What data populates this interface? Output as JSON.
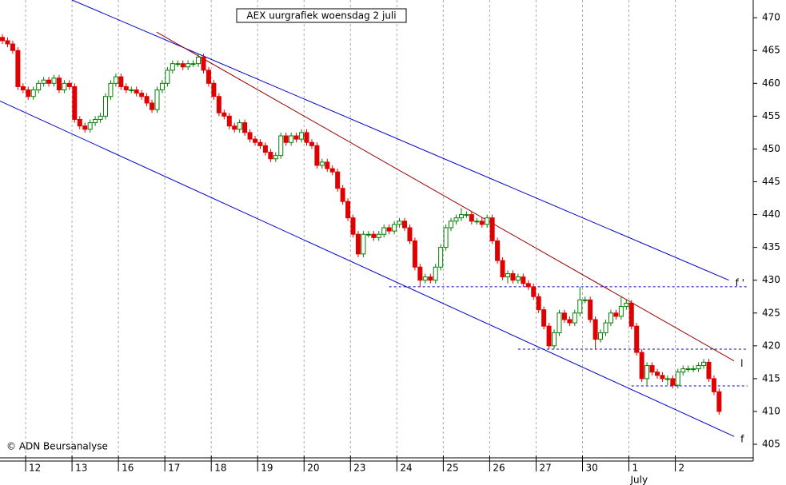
{
  "chart_data": {
    "type": "candlestick",
    "title": "AEX uurgrafiek woensdag 2 juli",
    "credit": "© ADN Beursanalyse",
    "month_label": "July",
    "up_color": "#008000",
    "down_color": "#e00000",
    "xlim": [
      -0.47,
      145.3
    ],
    "ylim": [
      403.3,
      472.7
    ],
    "yticks": [
      405,
      410,
      415,
      420,
      425,
      430,
      435,
      440,
      445,
      450,
      455,
      460,
      465,
      470
    ],
    "xticks": [
      {
        "value": 4.5,
        "label": "12"
      },
      {
        "value": 13.5,
        "label": "13"
      },
      {
        "value": 22.5,
        "label": "16"
      },
      {
        "value": 31.5,
        "label": "17"
      },
      {
        "value": 40.5,
        "label": "18"
      },
      {
        "value": 49.5,
        "label": "19"
      },
      {
        "value": 58.5,
        "label": "20"
      },
      {
        "value": 67.5,
        "label": "23"
      },
      {
        "value": 76.5,
        "label": "24"
      },
      {
        "value": 85.5,
        "label": "25"
      },
      {
        "value": 94.5,
        "label": "26"
      },
      {
        "value": 103.5,
        "label": "27"
      },
      {
        "value": 112.5,
        "label": "30"
      },
      {
        "value": 121.5,
        "label": "1"
      },
      {
        "value": 130.5,
        "label": "2"
      }
    ],
    "grid": true,
    "open": [
      467,
      466.5,
      466,
      465,
      459.5,
      459,
      458,
      459,
      460,
      460.5,
      460,
      460.8,
      459,
      460,
      459.5,
      454.5,
      453.5,
      453,
      454,
      454.5,
      455,
      458,
      460,
      461,
      459.5,
      459,
      459,
      458.5,
      458,
      457,
      456,
      459,
      460,
      462,
      463,
      463,
      462.5,
      463,
      463,
      464,
      462,
      460,
      458,
      455.5,
      455,
      453.5,
      453,
      454,
      452.5,
      451.5,
      451,
      450.5,
      449.5,
      448.5,
      449,
      452,
      451,
      452,
      451.5,
      452.5,
      451,
      450.5,
      447.5,
      448,
      447,
      446.5,
      444,
      442,
      439.5,
      437,
      434,
      437,
      437,
      436.5,
      437,
      438,
      437.5,
      438.5,
      439,
      438,
      436,
      432,
      430,
      430.5,
      430,
      432,
      435,
      438,
      439,
      439.5,
      440,
      440,
      439,
      439,
      438.5,
      439.5,
      436,
      433,
      430.5,
      431,
      430,
      430.5,
      429.5,
      429,
      427.5,
      425.5,
      423,
      420,
      422,
      425,
      424,
      423.5,
      425,
      427,
      427,
      424,
      421,
      422,
      423.5,
      425,
      424.5,
      426,
      426.5,
      423,
      419,
      415,
      417,
      416,
      415.5,
      415,
      415,
      414,
      416,
      416.5,
      416.5,
      416.5,
      417,
      417.5,
      415,
      413
    ],
    "high": [
      467.5,
      467,
      466.5,
      465.5,
      460,
      459.5,
      459.5,
      460.5,
      461,
      461,
      461.3,
      461.3,
      460.5,
      460.5,
      460,
      455,
      454,
      454.5,
      455,
      455.5,
      458.5,
      460.5,
      461.5,
      461.5,
      460,
      459.5,
      459.5,
      459,
      458.5,
      457.5,
      459.5,
      460.5,
      462.5,
      463.5,
      463.5,
      463.5,
      463.5,
      463.5,
      464.5,
      464.5,
      462.5,
      460.5,
      458.5,
      456,
      455.5,
      454,
      454.5,
      454.5,
      453,
      452,
      451.5,
      451,
      450,
      449.5,
      452.5,
      452.5,
      452.5,
      452.5,
      453,
      453,
      451.5,
      451,
      448.5,
      448.5,
      447.5,
      447,
      444.5,
      442.5,
      440,
      437.5,
      437.5,
      437.5,
      437.5,
      437.5,
      438.5,
      438.5,
      439,
      439.5,
      439.5,
      438.5,
      436.5,
      432.5,
      431,
      431,
      432.5,
      435.5,
      438.5,
      439.5,
      440,
      441,
      440.5,
      440.5,
      439.5,
      439.5,
      440,
      440,
      436.5,
      433.5,
      431.5,
      431.5,
      431,
      431,
      430,
      429.5,
      428,
      426,
      423.5,
      422.5,
      425.5,
      425.5,
      424.5,
      425.5,
      429,
      427.5,
      427.5,
      424.5,
      422.5,
      424,
      425.5,
      425.5,
      427.5,
      427,
      427,
      423.5,
      419.5,
      417.5,
      417.5,
      416.5,
      416,
      415.5,
      415.5,
      416.5,
      417,
      417,
      417,
      417.5,
      418,
      418,
      415.5,
      413.5
    ],
    "low": [
      466,
      465.5,
      464.5,
      459,
      458.5,
      457.5,
      457.5,
      458.5,
      459.5,
      459.5,
      459.5,
      458.5,
      458.5,
      459,
      454,
      453,
      452.5,
      452.5,
      453.5,
      454,
      454.5,
      457.5,
      459.5,
      459,
      458.5,
      458.5,
      458,
      457.5,
      456.5,
      455.5,
      455.5,
      458.5,
      459.5,
      461.5,
      462.5,
      462,
      462,
      462.5,
      462.5,
      461.5,
      459.5,
      457.5,
      455,
      454.5,
      453,
      452.5,
      452.5,
      452,
      451,
      450.5,
      450,
      449,
      448,
      448,
      448.5,
      450.5,
      450.5,
      451,
      451,
      450.5,
      450,
      447,
      447,
      446.5,
      446,
      443.5,
      441.5,
      439,
      436.5,
      433.5,
      433.5,
      436.5,
      436,
      436,
      436.5,
      437,
      437,
      438,
      437.5,
      435.5,
      431.5,
      429,
      429.5,
      429.5,
      429.5,
      431.5,
      434.5,
      437.5,
      438.5,
      439,
      439.5,
      438.5,
      438.5,
      438,
      438,
      435.5,
      432.5,
      430,
      429.5,
      429.5,
      429.5,
      429,
      428.5,
      427,
      425,
      422.5,
      419.5,
      419.5,
      421.5,
      423.5,
      423,
      423,
      424.5,
      426.5,
      423.5,
      419.5,
      420.5,
      421.5,
      423,
      424,
      424,
      425.5,
      422.5,
      418.5,
      414.5,
      414,
      415.5,
      415,
      414.5,
      414,
      413.5,
      413.5,
      415.5,
      416,
      416,
      416,
      416.5,
      414.5,
      412.5,
      409.5
    ],
    "close": [
      466.5,
      466,
      465,
      459.5,
      459,
      458,
      459,
      460,
      460.5,
      460,
      460.8,
      459,
      460,
      459.5,
      454.5,
      453.5,
      453,
      454,
      454.5,
      455,
      458,
      460,
      461,
      459.5,
      459,
      459,
      458.5,
      458,
      457,
      456,
      459,
      460,
      462,
      463,
      463,
      462.5,
      463,
      463,
      464,
      462,
      460,
      458,
      455.5,
      455,
      453.5,
      453,
      454,
      452.5,
      451.5,
      451,
      450.5,
      449.5,
      448.5,
      449,
      452,
      451,
      452,
      451.5,
      452.5,
      451,
      450.5,
      447.5,
      448,
      447,
      446.5,
      444,
      442,
      439.5,
      437,
      434,
      437,
      437,
      436.5,
      437,
      438,
      437.5,
      438.5,
      439,
      438,
      436,
      432,
      430,
      430.5,
      430,
      432,
      435,
      438,
      439,
      439.5,
      440,
      440,
      439,
      439,
      438.5,
      439.5,
      436,
      433,
      430.5,
      431,
      430,
      430.5,
      429.5,
      429,
      427.5,
      425.5,
      423,
      420,
      422,
      425,
      424,
      423.5,
      425,
      427,
      427,
      424,
      421,
      422,
      423.5,
      425,
      424.5,
      426,
      426.5,
      423,
      419,
      415,
      417,
      416,
      415.5,
      415,
      415,
      414,
      416,
      416.5,
      416.5,
      416.5,
      417,
      417.5,
      415,
      413,
      410
    ],
    "trend_lines": [
      {
        "x": [
          13.5,
          140.9
        ],
        "y": [
          472.7,
          430
        ],
        "color": "#0000cc",
        "label": "f '"
      },
      {
        "x": [
          -0.47,
          141.9
        ],
        "y": [
          457.3,
          406.2
        ],
        "color": "#0000cc",
        "label": "f"
      },
      {
        "x": [
          29.9,
          141.9
        ],
        "y": [
          467.8,
          417.7
        ],
        "color": "#990000",
        "label": "l"
      }
    ],
    "levels": [
      {
        "value": 429,
        "x": [
          75,
          144.5
        ],
        "color": "#0000cc"
      },
      {
        "value": 419.5,
        "x": [
          100,
          144.5
        ],
        "color": "#0000cc"
      },
      {
        "value": 413.9,
        "x": [
          122,
          144.5
        ],
        "color": "#0000cc"
      }
    ]
  }
}
